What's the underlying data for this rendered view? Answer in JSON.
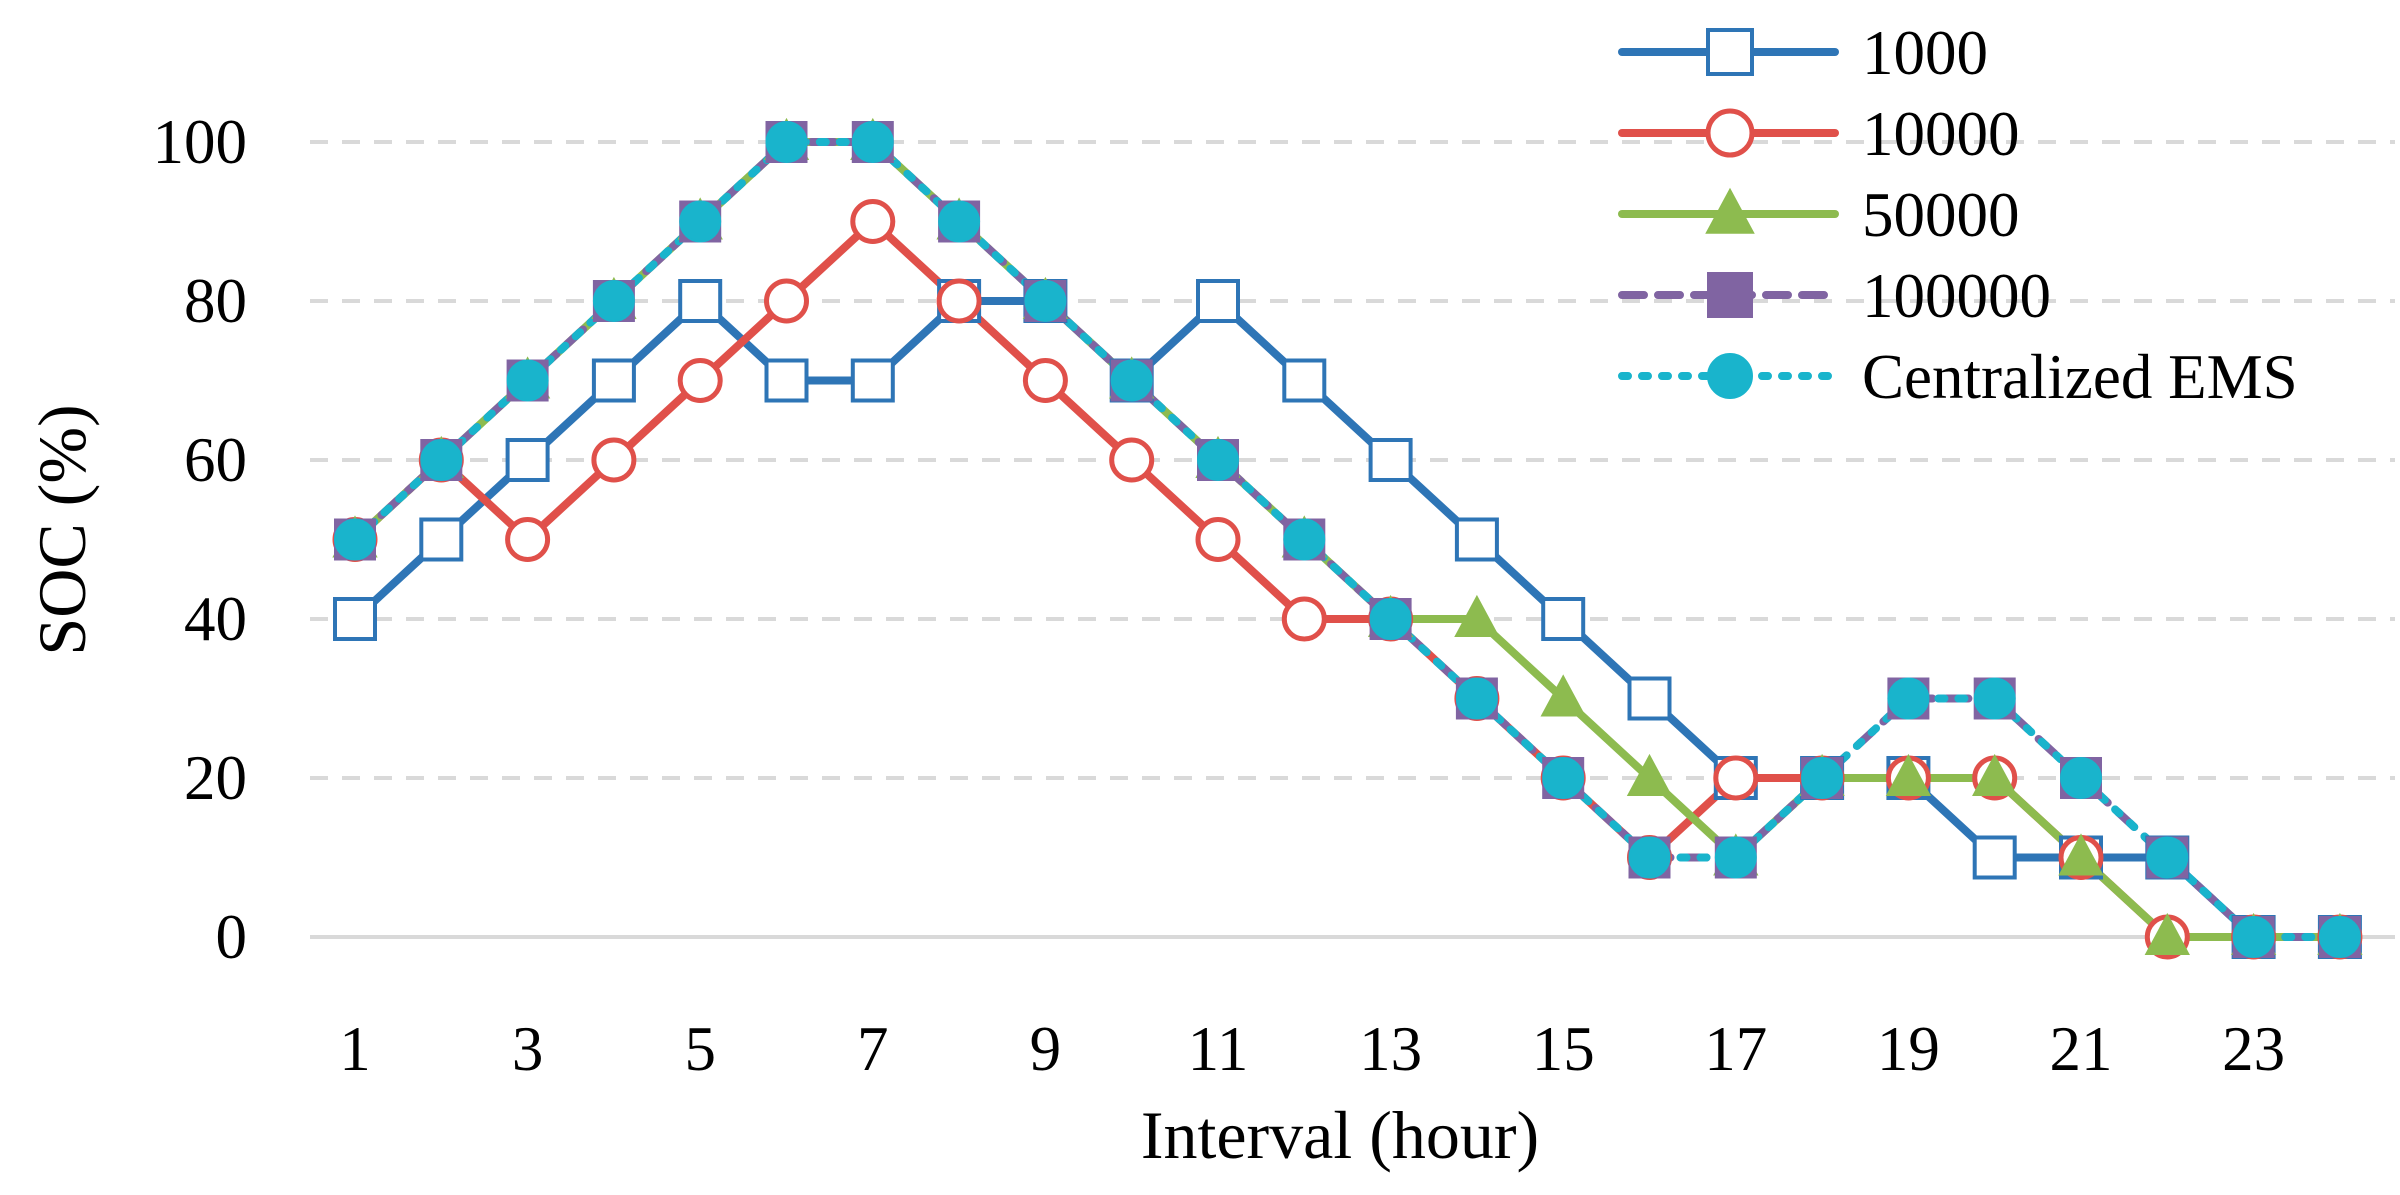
{
  "chart_data": {
    "type": "line",
    "title": "",
    "xlabel": "Interval (hour)",
    "ylabel": "SOC (%)",
    "ylim": [
      0,
      100
    ],
    "x": [
      1,
      2,
      3,
      4,
      5,
      6,
      7,
      8,
      9,
      10,
      11,
      12,
      13,
      14,
      15,
      16,
      17,
      18,
      19,
      20,
      21,
      22,
      23,
      24
    ],
    "x_tick_labels": [
      "1",
      "3",
      "5",
      "7",
      "9",
      "11",
      "13",
      "15",
      "17",
      "19",
      "21",
      "23"
    ],
    "y_tick_labels": [
      "0",
      "20",
      "40",
      "60",
      "80",
      "100"
    ],
    "grid": "horizontal dashed",
    "legend_position": "top-right",
    "series": [
      {
        "name": "1000",
        "color": "#2E75B6",
        "marker": "open-square",
        "line": "solid",
        "values": [
          40,
          50,
          60,
          70,
          80,
          70,
          70,
          80,
          80,
          70,
          80,
          70,
          60,
          50,
          40,
          30,
          20,
          20,
          20,
          10,
          10,
          10,
          0,
          0
        ]
      },
      {
        "name": "10000",
        "color": "#E0504A",
        "marker": "open-circle",
        "line": "solid",
        "values": [
          50,
          60,
          50,
          60,
          70,
          80,
          90,
          80,
          70,
          60,
          50,
          40,
          40,
          30,
          20,
          10,
          20,
          20,
          20,
          20,
          10,
          0,
          0,
          0
        ]
      },
      {
        "name": "50000",
        "color": "#8DBB4F",
        "marker": "triangle",
        "line": "solid",
        "values": [
          50,
          60,
          70,
          80,
          90,
          100,
          100,
          90,
          80,
          70,
          60,
          50,
          40,
          40,
          30,
          20,
          10,
          20,
          20,
          20,
          10,
          0,
          0,
          0
        ]
      },
      {
        "name": "100000",
        "color": "#8064A2",
        "marker": "filled-square",
        "line": "dashed",
        "values": [
          50,
          60,
          70,
          80,
          90,
          100,
          100,
          90,
          80,
          70,
          60,
          50,
          40,
          30,
          20,
          10,
          10,
          20,
          30,
          30,
          20,
          10,
          0,
          0
        ]
      },
      {
        "name": "Centralized EMS",
        "color": "#19B4CC",
        "marker": "filled-circle",
        "line": "dotted",
        "values": [
          50,
          60,
          70,
          80,
          90,
          100,
          100,
          90,
          80,
          70,
          60,
          50,
          40,
          30,
          20,
          10,
          10,
          20,
          30,
          30,
          20,
          10,
          0,
          0
        ]
      }
    ]
  }
}
